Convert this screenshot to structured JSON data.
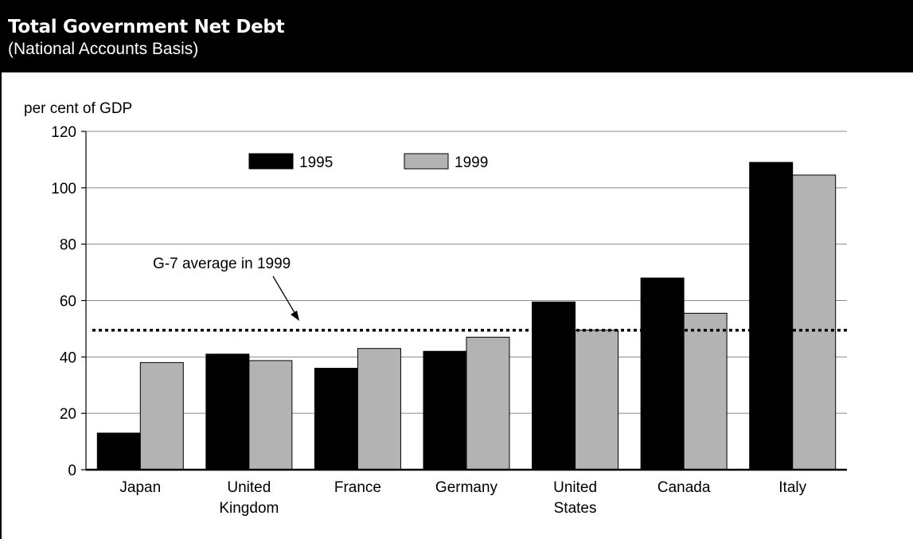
{
  "header": {
    "title": "Total Government Net Debt",
    "subtitle": "(National Accounts Basis)"
  },
  "chart_data": {
    "type": "bar",
    "ylabel": "per cent of GDP",
    "ylim": [
      0,
      120
    ],
    "yticks": [
      0,
      20,
      40,
      60,
      80,
      100,
      120
    ],
    "grid": true,
    "legend_position": "top-center",
    "categories": [
      [
        "Japan"
      ],
      [
        "United",
        "Kingdom"
      ],
      [
        "France"
      ],
      [
        "Germany"
      ],
      [
        "United",
        "States"
      ],
      [
        "Canada"
      ],
      [
        "Italy"
      ]
    ],
    "series": [
      {
        "name": "1995",
        "color": "#000000",
        "values": [
          13,
          41,
          36,
          42,
          59.5,
          68,
          109
        ]
      },
      {
        "name": "1999",
        "color": "#b3b3b3",
        "values": [
          38,
          38.7,
          43,
          47,
          49.5,
          55.5,
          104.5
        ]
      }
    ],
    "reference_line": {
      "label": "G-7 average in 1999",
      "value": 49.5,
      "style": "dotted"
    }
  }
}
